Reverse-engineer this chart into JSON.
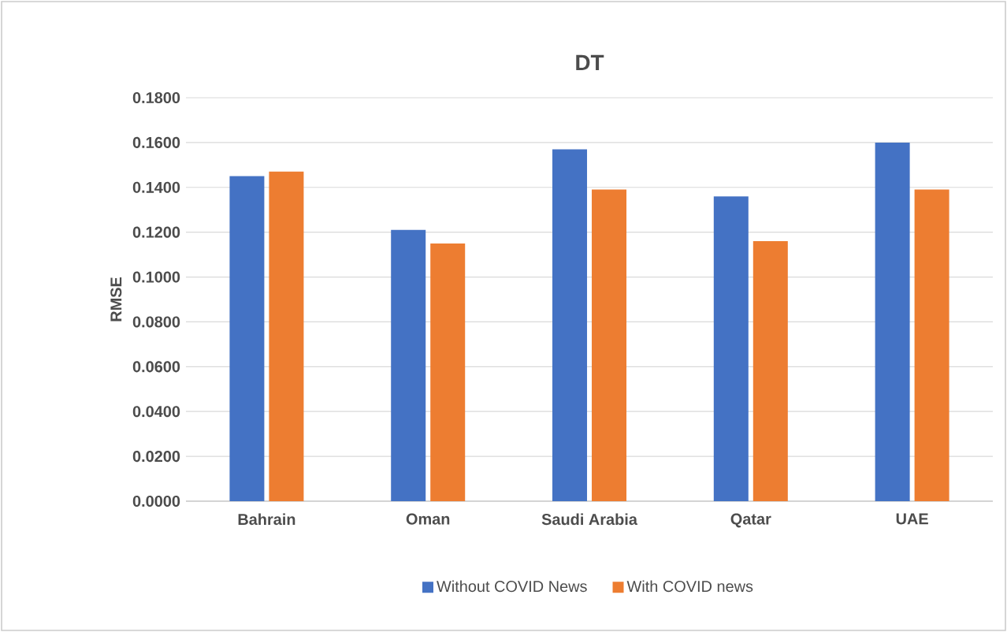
{
  "chart_data": {
    "type": "bar",
    "title": "DT",
    "ylabel": "RMSE",
    "categories": [
      "Bahrain",
      "Oman",
      "Saudi Arabia",
      "Qatar",
      "UAE"
    ],
    "series": [
      {
        "name": "Without COVID News",
        "color": "#4472c4",
        "values": [
          0.145,
          0.121,
          0.157,
          0.136,
          0.16
        ]
      },
      {
        "name": "With COVID news",
        "color": "#ed7d31",
        "values": [
          0.147,
          0.115,
          0.139,
          0.116,
          0.139
        ]
      }
    ],
    "ylim": [
      0,
      0.18
    ],
    "yticks": [
      {
        "value": 0,
        "label": "0.0000"
      },
      {
        "value": 0.02,
        "label": "0.0200"
      },
      {
        "value": 0.04,
        "label": "0.0400"
      },
      {
        "value": 0.06,
        "label": "0.0600"
      },
      {
        "value": 0.08,
        "label": "0.0800"
      },
      {
        "value": 0.1,
        "label": "0.1000"
      },
      {
        "value": 0.12,
        "label": "0.1200"
      },
      {
        "value": 0.14,
        "label": "0.1400"
      },
      {
        "value": 0.16,
        "label": "0.1600"
      },
      {
        "value": 0.18,
        "label": "0.1800"
      }
    ],
    "grid": "y",
    "legend": "bottom"
  }
}
